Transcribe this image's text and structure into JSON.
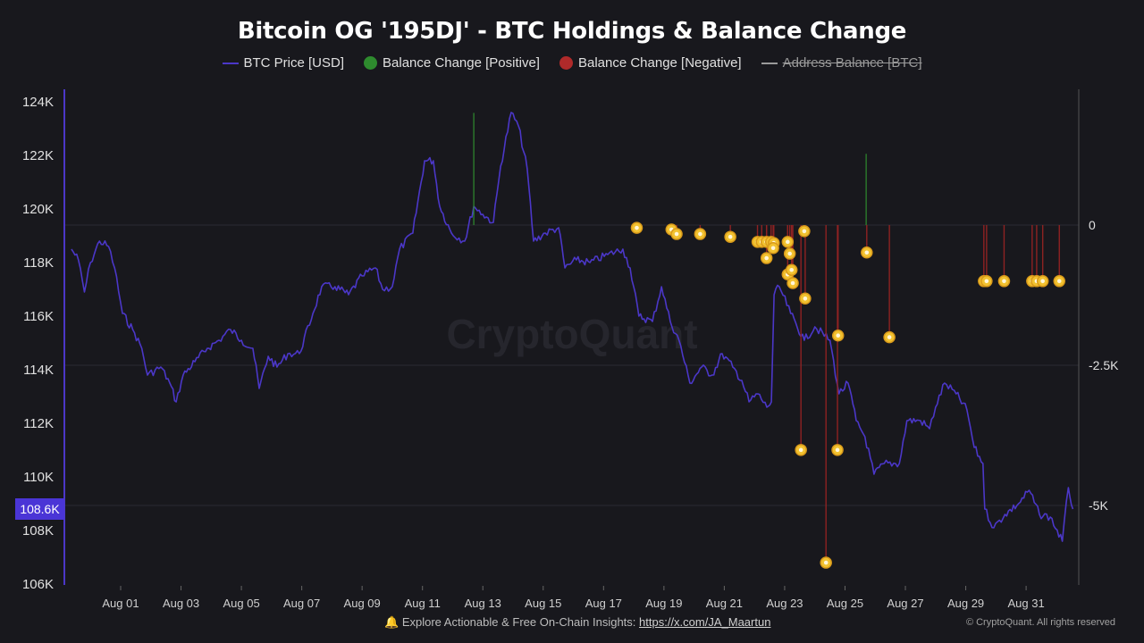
{
  "chart_data": {
    "type": "line",
    "title": "Bitcoin OG '195DJ' - BTC Holdings & Balance Change",
    "legend": {
      "placement": "top-center",
      "items": [
        {
          "label": "BTC Price [USD]",
          "marker": "line",
          "color": "#4b37c8",
          "hidden": false
        },
        {
          "label": "Balance Change [Positive]",
          "marker": "dot",
          "color": "#2e8b2e",
          "hidden": false
        },
        {
          "label": "Balance Change [Negative]",
          "marker": "dot",
          "color": "#b02a2a",
          "hidden": false
        },
        {
          "label": "Address Balance [BTC]",
          "marker": "line",
          "color": "#9a9a9a",
          "hidden": true
        }
      ]
    },
    "x_ticks": [
      "Aug 01",
      "Aug 03",
      "Aug 05",
      "Aug 07",
      "Aug 09",
      "Aug 11",
      "Aug 13",
      "Aug 15",
      "Aug 17",
      "Aug 19",
      "Aug 21",
      "Aug 23",
      "Aug 25",
      "Aug 27",
      "Aug 29",
      "Aug 31"
    ],
    "y_left": {
      "ticks": [
        "106K",
        "108K",
        "110K",
        "112K",
        "114K",
        "116K",
        "118K",
        "120K",
        "122K",
        "124K"
      ],
      "range": [
        106,
        124
      ],
      "unit": "K USD"
    },
    "y_right": {
      "ticks": [
        "0",
        "-2.5K",
        "-5K"
      ],
      "range_btc": [
        -6300,
        2500
      ]
    },
    "current_price_label": "108.6K",
    "grid": "horizontal on right-axis ticks",
    "price_series": {
      "name": "BTC Price [USD]",
      "x_day_of_august": [
        -0.63,
        -0.4,
        -0.2,
        0,
        0.3,
        0.6,
        0.8,
        1.06,
        1.4,
        1.7,
        1.89,
        2.33,
        2.63,
        2.84,
        3.07,
        3.46,
        3.87,
        4.26,
        4.64,
        5.0,
        5.38,
        5.59,
        5.89,
        6.18,
        6.54,
        6.92,
        7.37,
        7.66,
        8.1,
        8.55,
        9.0,
        9.44,
        9.68,
        10.0,
        10.24,
        10.68,
        11.07,
        11.36,
        11.57,
        11.96,
        12.4,
        12.7,
        13.0,
        13.35,
        13.59,
        13.94,
        14.18,
        14.47,
        14.68,
        15.07,
        15.51,
        15.72,
        16.1,
        16.55,
        17.14,
        17.64,
        17.88,
        18.17,
        18.62,
        18.92,
        19.21,
        19.5,
        19.86,
        20.25,
        20.6,
        20.93,
        21.28,
        21.58,
        21.82,
        22.11,
        22.41,
        22.56,
        22.65,
        22.82,
        23.2,
        23.65,
        24.0,
        24.5,
        24.8,
        25.1,
        25.37,
        25.66,
        25.96,
        26.3,
        26.8,
        27.05,
        27.5,
        27.8,
        28.0,
        28.3,
        28.68,
        29.04,
        29.28,
        29.57,
        29.63,
        29.93,
        30.3,
        30.75,
        31.1,
        31.44,
        31.8,
        32.2,
        32.4,
        32.55
      ],
      "price_k_usd": [
        118.5,
        118.1,
        116.9,
        118.0,
        118.8,
        118.6,
        117.8,
        116.1,
        115.5,
        114.8,
        113.8,
        114.1,
        113.5,
        112.8,
        113.8,
        114.3,
        114.8,
        115.1,
        115.5,
        115.1,
        114.8,
        113.3,
        114.5,
        114.1,
        114.6,
        114.6,
        116.1,
        117.1,
        117.1,
        116.8,
        117.5,
        117.8,
        117.0,
        117.1,
        118.5,
        119.1,
        121.8,
        121.8,
        120.1,
        119.1,
        118.8,
        120.1,
        119.8,
        119.5,
        121.6,
        123.6,
        123.1,
        121.5,
        118.8,
        119.1,
        119.3,
        117.8,
        118.1,
        118.0,
        118.3,
        118.5,
        117.8,
        116.0,
        115.8,
        117.1,
        115.8,
        115.1,
        113.5,
        114.1,
        113.8,
        114.6,
        114.1,
        113.6,
        112.8,
        113.1,
        112.6,
        112.8,
        116.8,
        117.1,
        116.1,
        115.1,
        115.6,
        115.1,
        113.1,
        113.5,
        112.1,
        111.5,
        110.1,
        110.5,
        110.5,
        112.1,
        112.1,
        111.8,
        112.6,
        113.5,
        113.1,
        112.5,
        111.1,
        110.5,
        108.8,
        108.1,
        108.6,
        109.0,
        109.5,
        108.6,
        108.5,
        107.6,
        109.6,
        108.8
      ]
    },
    "balance_change_positive": {
      "x_day_of_august": [
        12.7,
        25.7
      ],
      "btc": [
        2000,
        1270
      ]
    },
    "balance_change_negative": {
      "x_day_of_august": [
        18.1,
        19.25,
        19.42,
        20.2,
        21.2,
        22.1,
        22.24,
        22.4,
        22.55,
        22.64,
        22.4,
        22.62,
        23.1,
        23.17,
        23.1,
        23.23,
        23.27,
        23.65,
        23.68,
        23.54,
        24.37,
        24.75,
        24.77,
        25.72,
        26.47,
        29.6,
        29.69,
        30.27,
        31.2,
        31.35,
        31.55,
        32.1
      ],
      "btc": [
        -50,
        -80,
        -160,
        -160,
        -210,
        -300,
        -300,
        -300,
        -300,
        -320,
        -590,
        -410,
        -300,
        -510,
        -880,
        -800,
        -1035,
        -110,
        -1310,
        -4010,
        -6020,
        -4010,
        -1970,
        -490,
        -2000,
        -1000,
        -1000,
        -1000,
        -1000,
        -1000,
        -1000,
        -1000
      ]
    }
  },
  "watermark": "CryptoQuant",
  "footer": {
    "text": "Explore Actionable & Free On-Chain Insights:",
    "link": "https://x.com/JA_Maartun",
    "copyright": "© CryptoQuant. All rights reserved"
  }
}
